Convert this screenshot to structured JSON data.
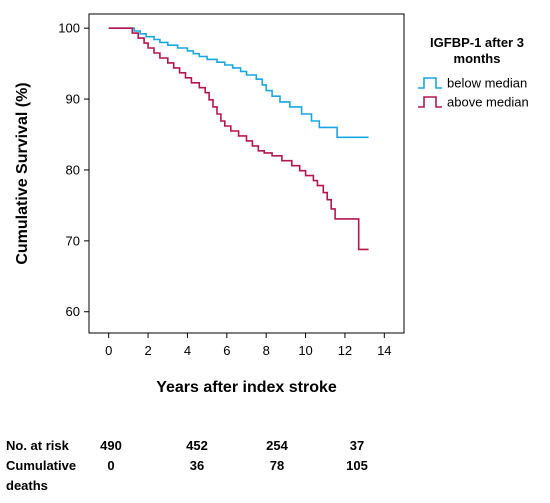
{
  "chart_data": {
    "type": "line",
    "title": "",
    "xlabel": "Years after index stroke",
    "ylabel": "Cumulative Survival (%)",
    "xlim": [
      -1,
      15
    ],
    "ylim": [
      57,
      102
    ],
    "xticks": [
      "0",
      "2",
      "4",
      "6",
      "8",
      "10",
      "12",
      "14"
    ],
    "yticks": [
      "60",
      "70",
      "80",
      "90",
      "100"
    ],
    "grid": false,
    "legend": {
      "title": "IGFBP-1 after 3 months",
      "title_lines": [
        "IGFBP-1 after 3",
        "months"
      ],
      "placement": "top-right-outside"
    },
    "series": [
      {
        "name": "below median",
        "color": "#1aa7e0",
        "step": true,
        "x": [
          0,
          1.3,
          1.6,
          1.9,
          2.3,
          2.6,
          3.0,
          3.5,
          4.0,
          4.3,
          4.6,
          5.0,
          5.5,
          5.9,
          6.3,
          6.7,
          7.0,
          7.5,
          7.8,
          8.0,
          8.3,
          8.7,
          9.2,
          9.8,
          10.3,
          10.7,
          11.6,
          13.2
        ],
        "y": [
          100,
          99.6,
          99.2,
          98.8,
          98.4,
          98.0,
          97.6,
          97.2,
          96.8,
          96.4,
          96.0,
          95.6,
          95.2,
          94.8,
          94.4,
          93.9,
          93.4,
          92.8,
          92.0,
          91.2,
          90.4,
          89.6,
          88.9,
          87.9,
          86.9,
          86.0,
          84.6,
          84.6
        ]
      },
      {
        "name": "above median",
        "color": "#b5164f",
        "step": true,
        "x": [
          0,
          1.2,
          1.5,
          1.8,
          2.0,
          2.3,
          2.6,
          3.0,
          3.3,
          3.6,
          3.9,
          4.2,
          4.6,
          4.9,
          5.1,
          5.3,
          5.5,
          5.7,
          5.9,
          6.2,
          6.6,
          7.0,
          7.3,
          7.6,
          7.9,
          8.3,
          8.8,
          9.3,
          9.7,
          10.0,
          10.4,
          10.6,
          10.9,
          11.1,
          11.3,
          11.5,
          12.7,
          13.2
        ],
        "y": [
          100,
          99.3,
          98.6,
          97.9,
          97.2,
          96.5,
          95.8,
          95.1,
          94.4,
          93.7,
          93.0,
          92.3,
          91.6,
          90.9,
          89.9,
          88.9,
          87.9,
          86.9,
          86.2,
          85.5,
          84.8,
          84.1,
          83.4,
          82.7,
          82.4,
          82.0,
          81.3,
          80.6,
          79.9,
          79.2,
          78.5,
          77.8,
          76.8,
          75.8,
          74.5,
          73.1,
          68.8,
          68.8
        ]
      }
    ]
  },
  "risk_table": {
    "rows": [
      {
        "label": "No. at risk",
        "values": [
          "490",
          "452",
          "254",
          "37"
        ]
      },
      {
        "label_lines": [
          "Cumulative",
          "deaths"
        ],
        "values": [
          "0",
          "36",
          "78",
          "105"
        ]
      }
    ]
  }
}
